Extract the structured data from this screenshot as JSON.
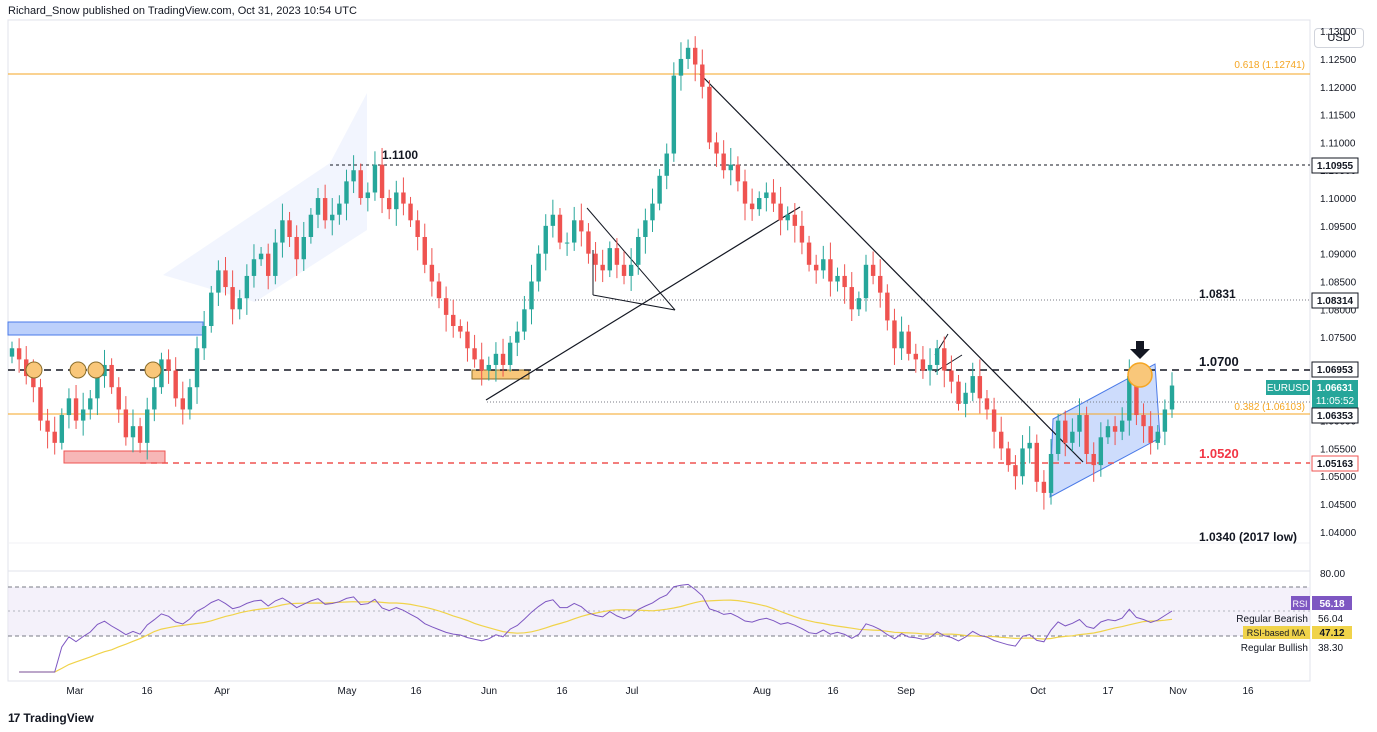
{
  "header": {
    "published_by": "Richard_Snow published on TradingView.com, Oct 31, 2023 10:54 UTC"
  },
  "toolbar": {
    "currency": "USD"
  },
  "footer": {
    "logo_mark": "17",
    "logo_text": "TradingView"
  },
  "colors": {
    "up": "#26a69a",
    "down": "#ef5350",
    "fib": "#f5a623",
    "rsi": "#7e57c2",
    "rsi_ma": "#f0d34a",
    "support_red": "#ef5350",
    "label_red": "#f23645"
  },
  "chart_data": [
    {
      "type": "candlestick",
      "symbol": "EURUSD",
      "ylim": [
        1.038,
        1.132
      ],
      "y_ticks": [
        "1.13000",
        "1.12500",
        "1.12000",
        "1.11500",
        "1.11000",
        "1.10500",
        "1.10000",
        "1.09500",
        "1.09000",
        "1.08500",
        "1.08000",
        "1.07500",
        "1.07000",
        "1.06500",
        "1.06000",
        "1.05500",
        "1.05000",
        "1.04500",
        "1.04000"
      ],
      "x_labels": [
        "Mar",
        "16",
        "Apr",
        "May",
        "16",
        "Jun",
        "16",
        "Jul",
        "Aug",
        "16",
        "Sep",
        "Oct",
        "17",
        "Nov",
        "16"
      ],
      "annotations": {
        "fib_618": "0.618 (1.12741)",
        "fib_382": "0.382 (1.06103)",
        "level_1100": "1.1100",
        "level_1083": "1.0831",
        "level_1070": "1.0700",
        "level_1052": "1.0520",
        "level_1034": "1.0340 (2017 low)"
      },
      "price_tags": {
        "p1": "1.10955",
        "p2": "1.08314",
        "p3": "1.06953",
        "sym": "EURUSD",
        "last": "1.06631",
        "countdown": "11:05:52",
        "p4": "1.06353",
        "p5": "1.05163"
      },
      "closes": [
        1.073,
        1.071,
        1.068,
        1.066,
        1.06,
        1.058,
        1.056,
        1.061,
        1.064,
        1.06,
        1.062,
        1.064,
        1.068,
        1.07,
        1.066,
        1.062,
        1.057,
        1.059,
        1.056,
        1.062,
        1.066,
        1.071,
        1.069,
        1.064,
        1.062,
        1.066,
        1.073,
        1.077,
        1.083,
        1.087,
        1.084,
        1.08,
        1.082,
        1.086,
        1.089,
        1.09,
        1.086,
        1.092,
        1.096,
        1.093,
        1.089,
        1.093,
        1.097,
        1.1,
        1.096,
        1.097,
        1.099,
        1.103,
        1.105,
        1.1,
        1.101,
        1.106,
        1.1,
        1.098,
        1.101,
        1.099,
        1.096,
        1.093,
        1.088,
        1.085,
        1.082,
        1.079,
        1.077,
        1.076,
        1.073,
        1.071,
        1.069,
        1.07,
        1.072,
        1.07,
        1.074,
        1.076,
        1.08,
        1.085,
        1.09,
        1.095,
        1.097,
        1.092,
        1.092,
        1.096,
        1.094,
        1.09,
        1.088,
        1.087,
        1.091,
        1.088,
        1.086,
        1.088,
        1.093,
        1.096,
        1.099,
        1.104,
        1.108,
        1.122,
        1.125,
        1.127,
        1.124,
        1.12,
        1.11,
        1.108,
        1.105,
        1.106,
        1.103,
        1.099,
        1.098,
        1.1,
        1.101,
        1.099,
        1.096,
        1.097,
        1.095,
        1.092,
        1.088,
        1.087,
        1.089,
        1.085,
        1.086,
        1.084,
        1.08,
        1.082,
        1.088,
        1.086,
        1.083,
        1.078,
        1.073,
        1.076,
        1.072,
        1.071,
        1.069,
        1.07,
        1.073,
        1.069,
        1.067,
        1.063,
        1.065,
        1.068,
        1.064,
        1.062,
        1.058,
        1.055,
        1.052,
        1.05,
        1.055,
        1.056,
        1.049,
        1.047,
        1.054,
        1.06,
        1.056,
        1.058,
        1.061,
        1.054,
        1.052,
        1.057,
        1.059,
        1.058,
        1.06,
        1.068,
        1.061,
        1.059,
        1.056,
        1.058,
        1.062,
        1.0663
      ],
      "rsi": {
        "label": "RSI",
        "value": "56.18",
        "bearish_label": "Regular Bearish",
        "bearish_value": "56.04",
        "ma_label": "RSI-based MA",
        "ma_value": "47.12",
        "bullish_label": "Regular Bullish",
        "bullish_value": "38.30",
        "top_tick": "80.00"
      }
    }
  ]
}
